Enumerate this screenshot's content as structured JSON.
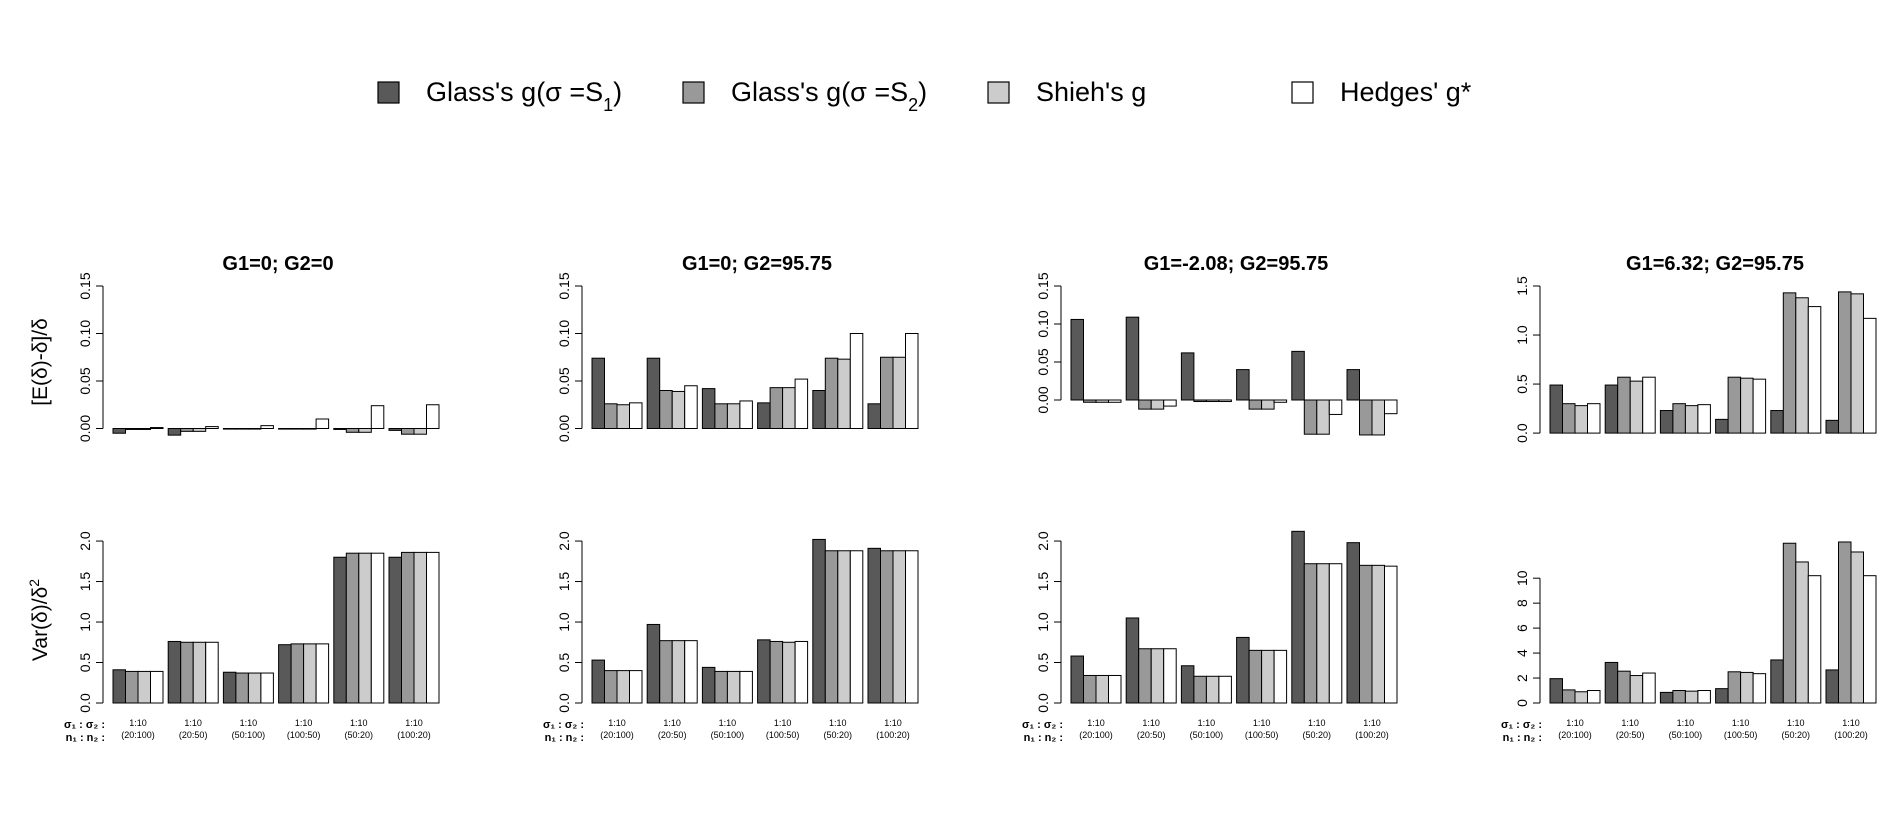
{
  "legend": {
    "items": [
      {
        "label": "Glass's g(σ =S",
        "sub": "1",
        "suffix": ")",
        "color": "#595959"
      },
      {
        "label": "Glass's g(σ =S",
        "sub": "2",
        "suffix": ")",
        "color": "#999999"
      },
      {
        "label": "Shieh's g",
        "sub": "",
        "suffix": "",
        "color": "#cccccc"
      },
      {
        "label": "Hedges' g*",
        "sub": "",
        "suffix": "",
        "color": "#ffffff"
      }
    ]
  },
  "row_labels": {
    "bias": "[E(δ)-δ]/δ",
    "var": "Var(δ)/δ",
    "var_sup": "2"
  },
  "key_labels": {
    "sigma": "σ₁ : σ₂ :",
    "n": "n₁ : n₂ :"
  },
  "chart_data": [
    {
      "type": "bar",
      "title": "G1=0; G2=0",
      "ylabel": "[E(δ)-δ]/δ",
      "categories": [
        {
          "ratio": "1:10",
          "n": "(20:100)"
        },
        {
          "ratio": "1:10",
          "n": "(20:50)"
        },
        {
          "ratio": "1:10",
          "n": "(50:100)"
        },
        {
          "ratio": "1:10",
          "n": "(100:50)"
        },
        {
          "ratio": "1:10",
          "n": "(50:20)"
        },
        {
          "ratio": "1:10",
          "n": "(100:20)"
        }
      ],
      "series": [
        {
          "name": "Glass's g(σ =S1)",
          "values": [
            -0.005,
            -0.007,
            0.0,
            0.0,
            -0.001,
            -0.002
          ]
        },
        {
          "name": "Glass's g(σ =S2)",
          "values": [
            -0.001,
            -0.003,
            0.0,
            0.0,
            -0.004,
            -0.006
          ]
        },
        {
          "name": "Shieh's g",
          "values": [
            -0.001,
            -0.003,
            0.0,
            0.0,
            -0.004,
            -0.006
          ]
        },
        {
          "name": "Hedges' g*",
          "values": [
            0.001,
            0.002,
            0.003,
            0.01,
            0.024,
            0.025
          ]
        }
      ],
      "ylim": [
        -0.01,
        0.15
      ],
      "yticks": [
        0.0,
        0.05,
        0.1,
        0.15
      ],
      "ytick_labels": [
        "0.00",
        "0.05",
        "0.10",
        "0.15"
      ]
    },
    {
      "type": "bar",
      "title": "G1=0; G2=95.75",
      "categories": [
        {
          "ratio": "1:10",
          "n": "(20:100)"
        },
        {
          "ratio": "1:10",
          "n": "(20:50)"
        },
        {
          "ratio": "1:10",
          "n": "(50:100)"
        },
        {
          "ratio": "1:10",
          "n": "(100:50)"
        },
        {
          "ratio": "1:10",
          "n": "(50:20)"
        },
        {
          "ratio": "1:10",
          "n": "(100:20)"
        }
      ],
      "series": [
        {
          "name": "Glass's g(σ =S1)",
          "values": [
            0.074,
            0.074,
            0.042,
            0.027,
            0.04,
            0.026
          ]
        },
        {
          "name": "Glass's g(σ =S2)",
          "values": [
            0.026,
            0.04,
            0.026,
            0.043,
            0.074,
            0.075
          ]
        },
        {
          "name": "Shieh's g",
          "values": [
            0.025,
            0.039,
            0.026,
            0.043,
            0.073,
            0.075
          ]
        },
        {
          "name": "Hedges' g*",
          "values": [
            0.027,
            0.045,
            0.029,
            0.052,
            0.1,
            0.1
          ]
        }
      ],
      "ylim": [
        -0.01,
        0.15
      ],
      "yticks": [
        0.0,
        0.05,
        0.1,
        0.15
      ],
      "ytick_labels": [
        "0.00",
        "0.05",
        "0.10",
        "0.15"
      ]
    },
    {
      "type": "bar",
      "title": "G1=-2.08; G2=95.75",
      "categories": [
        {
          "ratio": "1:10",
          "n": "(20:100)"
        },
        {
          "ratio": "1:10",
          "n": "(20:50)"
        },
        {
          "ratio": "1:10",
          "n": "(50:100)"
        },
        {
          "ratio": "1:10",
          "n": "(100:50)"
        },
        {
          "ratio": "1:10",
          "n": "(50:20)"
        },
        {
          "ratio": "1:10",
          "n": "(100:20)"
        }
      ],
      "series": [
        {
          "name": "Glass's g(σ =S1)",
          "values": [
            0.106,
            0.109,
            0.062,
            0.04,
            0.064,
            0.04
          ]
        },
        {
          "name": "Glass's g(σ =S2)",
          "values": [
            -0.003,
            -0.012,
            -0.002,
            -0.012,
            -0.045,
            -0.046
          ]
        },
        {
          "name": "Shieh's g",
          "values": [
            -0.003,
            -0.012,
            -0.002,
            -0.012,
            -0.045,
            -0.046
          ]
        },
        {
          "name": "Hedges' g*",
          "values": [
            -0.003,
            -0.008,
            -0.002,
            -0.003,
            -0.019,
            -0.018
          ]
        }
      ],
      "ylim": [
        -0.05,
        0.15
      ],
      "yticks": [
        0.0,
        0.05,
        0.1,
        0.15
      ],
      "ytick_labels": [
        "0.00",
        "0.05",
        "0.10",
        "0.15"
      ]
    },
    {
      "type": "bar",
      "title": "G1=6.32; G2=95.75",
      "categories": [
        {
          "ratio": "1:10",
          "n": "(20:100)"
        },
        {
          "ratio": "1:10",
          "n": "(20:50)"
        },
        {
          "ratio": "1:10",
          "n": "(50:100)"
        },
        {
          "ratio": "1:10",
          "n": "(100:50)"
        },
        {
          "ratio": "1:10",
          "n": "(50:20)"
        },
        {
          "ratio": "1:10",
          "n": "(100:20)"
        }
      ],
      "series": [
        {
          "name": "Glass's g(σ =S1)",
          "values": [
            0.49,
            0.49,
            0.23,
            0.14,
            0.23,
            0.13
          ]
        },
        {
          "name": "Glass's g(σ =S2)",
          "values": [
            0.3,
            0.57,
            0.3,
            0.57,
            1.43,
            1.44
          ]
        },
        {
          "name": "Shieh's g",
          "values": [
            0.28,
            0.53,
            0.28,
            0.56,
            1.38,
            1.42
          ]
        },
        {
          "name": "Hedges' g*",
          "values": [
            0.3,
            0.57,
            0.29,
            0.55,
            1.29,
            1.17
          ]
        }
      ],
      "ylim": [
        -0.05,
        1.5
      ],
      "yticks": [
        0.0,
        0.5,
        1.0,
        1.5
      ],
      "ytick_labels": [
        "0.0",
        "0.5",
        "1.0",
        "1.5"
      ]
    },
    {
      "type": "bar",
      "ylabel": "Var(δ)/δ²",
      "categories": [
        {
          "ratio": "1:10",
          "n": "(20:100)"
        },
        {
          "ratio": "1:10",
          "n": "(20:50)"
        },
        {
          "ratio": "1:10",
          "n": "(50:100)"
        },
        {
          "ratio": "1:10",
          "n": "(100:50)"
        },
        {
          "ratio": "1:10",
          "n": "(50:20)"
        },
        {
          "ratio": "1:10",
          "n": "(100:20)"
        }
      ],
      "series": [
        {
          "name": "Glass's g(σ =S1)",
          "values": [
            0.41,
            0.76,
            0.38,
            0.72,
            1.8,
            1.8
          ]
        },
        {
          "name": "Glass's g(σ =S2)",
          "values": [
            0.39,
            0.75,
            0.37,
            0.73,
            1.85,
            1.86
          ]
        },
        {
          "name": "Shieh's g",
          "values": [
            0.39,
            0.75,
            0.37,
            0.73,
            1.85,
            1.86
          ]
        },
        {
          "name": "Hedges' g*",
          "values": [
            0.39,
            0.75,
            0.37,
            0.73,
            1.85,
            1.86
          ]
        }
      ],
      "ylim": [
        0,
        2.05
      ],
      "yticks": [
        0.0,
        0.5,
        1.0,
        1.5,
        2.0
      ],
      "ytick_labels": [
        "0.0",
        "0.5",
        "1.0",
        "1.5",
        "2.0"
      ]
    },
    {
      "type": "bar",
      "categories": [
        {
          "ratio": "1:10",
          "n": "(20:100)"
        },
        {
          "ratio": "1:10",
          "n": "(20:50)"
        },
        {
          "ratio": "1:10",
          "n": "(50:100)"
        },
        {
          "ratio": "1:10",
          "n": "(100:50)"
        },
        {
          "ratio": "1:10",
          "n": "(50:20)"
        },
        {
          "ratio": "1:10",
          "n": "(100:20)"
        }
      ],
      "series": [
        {
          "name": "Glass's g(σ =S1)",
          "values": [
            0.53,
            0.97,
            0.44,
            0.78,
            2.02,
            1.91
          ]
        },
        {
          "name": "Glass's g(σ =S2)",
          "values": [
            0.4,
            0.77,
            0.39,
            0.76,
            1.88,
            1.88
          ]
        },
        {
          "name": "Shieh's g",
          "values": [
            0.4,
            0.77,
            0.39,
            0.75,
            1.88,
            1.88
          ]
        },
        {
          "name": "Hedges' g*",
          "values": [
            0.4,
            0.77,
            0.39,
            0.76,
            1.88,
            1.88
          ]
        }
      ],
      "ylim": [
        0,
        2.05
      ],
      "yticks": [
        0.0,
        0.5,
        1.0,
        1.5,
        2.0
      ],
      "ytick_labels": [
        "0.0",
        "0.5",
        "1.0",
        "1.5",
        "2.0"
      ]
    },
    {
      "type": "bar",
      "categories": [
        {
          "ratio": "1:10",
          "n": "(20:100)"
        },
        {
          "ratio": "1:10",
          "n": "(20:50)"
        },
        {
          "ratio": "1:10",
          "n": "(50:100)"
        },
        {
          "ratio": "1:10",
          "n": "(100:50)"
        },
        {
          "ratio": "1:10",
          "n": "(50:20)"
        },
        {
          "ratio": "1:10",
          "n": "(100:20)"
        }
      ],
      "series": [
        {
          "name": "Glass's g(σ =S1)",
          "values": [
            0.58,
            1.05,
            0.46,
            0.81,
            2.12,
            1.98
          ]
        },
        {
          "name": "Glass's g(σ =S2)",
          "values": [
            0.34,
            0.67,
            0.33,
            0.65,
            1.72,
            1.7
          ]
        },
        {
          "name": "Shieh's g",
          "values": [
            0.34,
            0.67,
            0.33,
            0.65,
            1.72,
            1.7
          ]
        },
        {
          "name": "Hedges' g*",
          "values": [
            0.34,
            0.67,
            0.33,
            0.65,
            1.72,
            1.69
          ]
        }
      ],
      "ylim": [
        0,
        2.05
      ],
      "yticks": [
        0.0,
        0.5,
        1.0,
        1.5,
        2.0
      ],
      "ytick_labels": [
        "0.0",
        "0.5",
        "1.0",
        "1.5",
        "2.0"
      ]
    },
    {
      "type": "bar",
      "categories": [
        {
          "ratio": "1:10",
          "n": "(20:100)"
        },
        {
          "ratio": "1:10",
          "n": "(20:50)"
        },
        {
          "ratio": "1:10",
          "n": "(50:100)"
        },
        {
          "ratio": "1:10",
          "n": "(100:50)"
        },
        {
          "ratio": "1:10",
          "n": "(50:20)"
        },
        {
          "ratio": "1:10",
          "n": "(100:20)"
        }
      ],
      "series": [
        {
          "name": "Glass's g(σ =S1)",
          "values": [
            1.95,
            3.25,
            0.85,
            1.15,
            3.45,
            2.65
          ]
        },
        {
          "name": "Glass's g(σ =S2)",
          "values": [
            1.05,
            2.55,
            1.0,
            2.5,
            12.8,
            12.9
          ]
        },
        {
          "name": "Shieh's g",
          "values": [
            0.9,
            2.2,
            0.95,
            2.45,
            11.3,
            12.1
          ]
        },
        {
          "name": "Hedges' g*",
          "values": [
            1.0,
            2.4,
            1.0,
            2.35,
            10.2,
            10.2
          ]
        }
      ],
      "ylim": [
        0,
        13.3
      ],
      "yticks": [
        0,
        2,
        4,
        6,
        8,
        10
      ],
      "ytick_labels": [
        "0",
        "2",
        "4",
        "6",
        "8",
        "10"
      ]
    }
  ]
}
